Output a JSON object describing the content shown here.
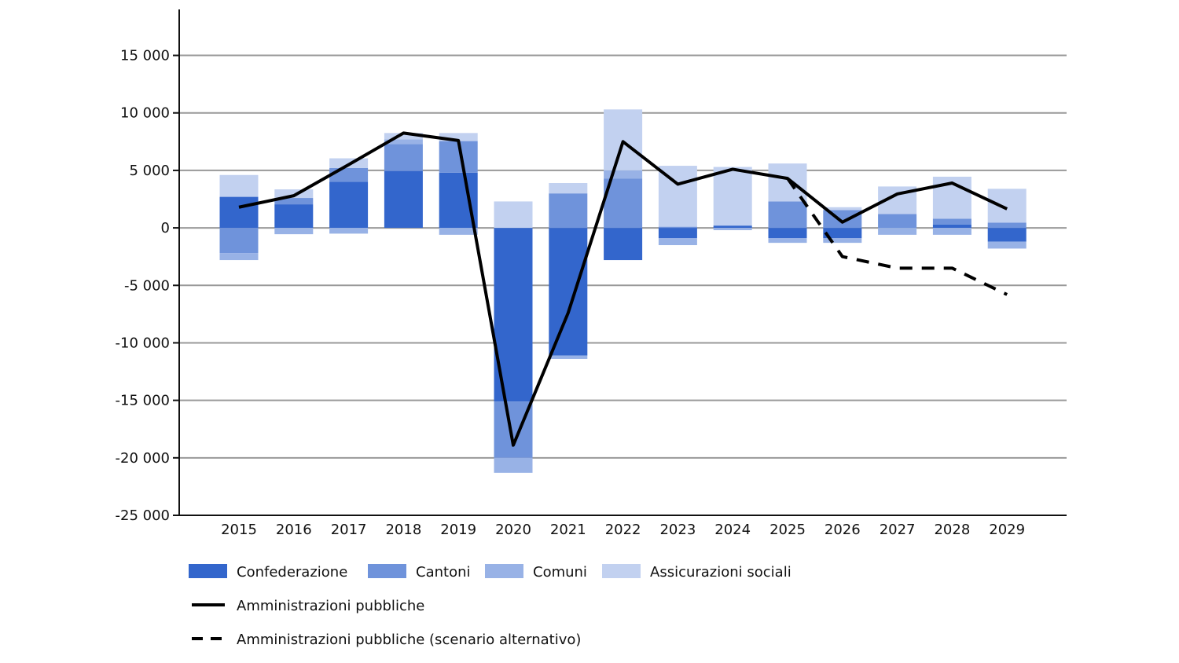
{
  "chart_data": {
    "type": "bar",
    "stacked": true,
    "categories": [
      "2015",
      "2016",
      "2017",
      "2018",
      "2019",
      "2020",
      "2021",
      "2022",
      "2023",
      "2024",
      "2025",
      "2026",
      "2027",
      "2028",
      "2029"
    ],
    "ylim": [
      -25000,
      19000
    ],
    "yticks": [
      -25000,
      -20000,
      -15000,
      -10000,
      -5000,
      0,
      5000,
      10000,
      15000
    ],
    "ytick_labels": [
      "-25 000",
      "-20 000",
      "-15 000",
      "-10 000",
      "-5 000",
      "0",
      "5 000",
      "10 000",
      "15 000"
    ],
    "grid": true,
    "legend_position": "bottom",
    "series": [
      {
        "name": "Confederazione",
        "color": "#3366cc",
        "values": [
          2700,
          2050,
          4000,
          4950,
          4800,
          -15100,
          -11100,
          -2800,
          -900,
          200,
          -900,
          -900,
          0,
          300,
          -1200
        ]
      },
      {
        "name": "Cantoni",
        "color": "#6f93db",
        "values": [
          -2200,
          550,
          1200,
          2350,
          2750,
          -4900,
          3000,
          4300,
          100,
          0,
          2300,
          1550,
          1200,
          500,
          450
        ]
      },
      {
        "name": "Comuni",
        "color": "#98b2e6",
        "values": [
          -600,
          -550,
          -500,
          400,
          -600,
          -1300,
          -300,
          700,
          -600,
          -200,
          -400,
          -400,
          -600,
          -600,
          -600
        ]
      },
      {
        "name": "Assicurazioni sociali",
        "color": "#c2d1f0",
        "values": [
          1900,
          750,
          850,
          550,
          700,
          2300,
          900,
          5300,
          5300,
          5100,
          3300,
          250,
          2400,
          3650,
          2950
        ]
      }
    ],
    "lines": [
      {
        "name": "Amministrazioni pubbliche",
        "style": "solid",
        "color": "#000000",
        "values": [
          1800,
          2800,
          5500,
          8250,
          7600,
          -18900,
          -7400,
          7500,
          3800,
          5100,
          4300,
          500,
          2950,
          3900,
          1650
        ]
      },
      {
        "name": "Amministrazioni pubbliche (scenario alternativo)",
        "style": "dashed",
        "color": "#000000",
        "values": [
          null,
          null,
          null,
          null,
          null,
          null,
          null,
          null,
          null,
          null,
          4300,
          -2500,
          -3500,
          -3500,
          -5800
        ]
      }
    ]
  }
}
